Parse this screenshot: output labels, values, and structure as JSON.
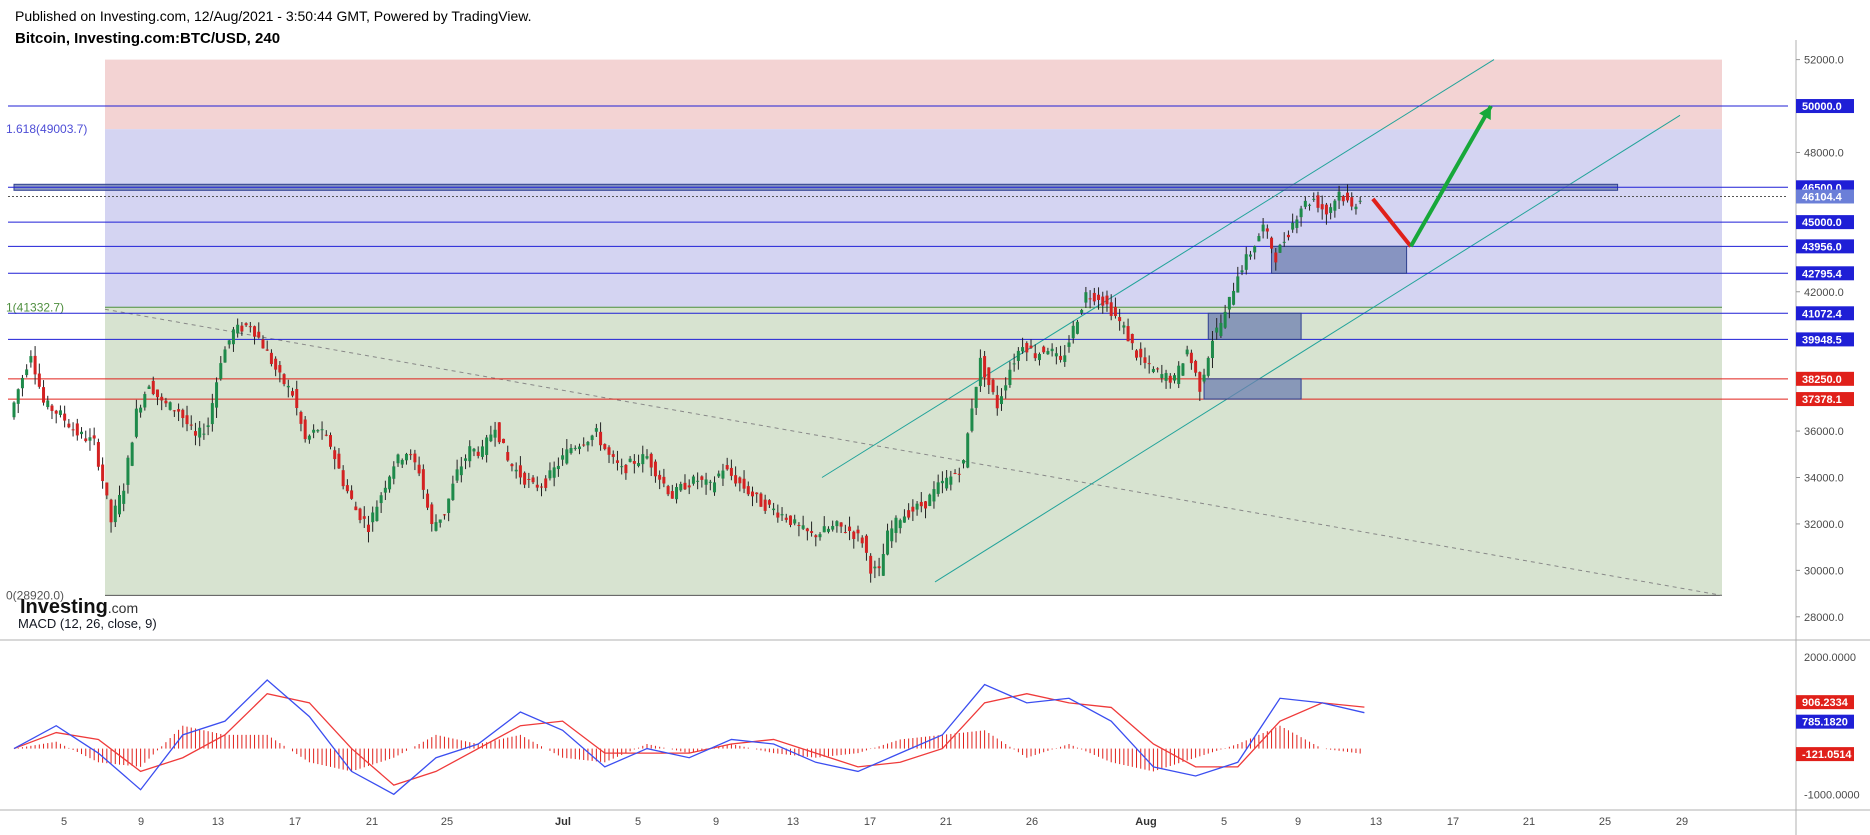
{
  "header": {
    "published": "Published on Investing.com, 12/Aug/2021 - 3:50:44 GMT, Powered by TradingView.",
    "symbol": "Bitcoin, Investing.com:BTC/USD, 240"
  },
  "brand": {
    "logo_main": "Investing",
    "logo_suffix": ".com"
  },
  "colors": {
    "fib_zone_red": "#f3d3d3",
    "fib_zone_blue": "#d4d4f2",
    "fib_zone_green": "#d7e3d0",
    "level_blue": "#1f1fd6",
    "level_red": "#e0201a",
    "channel": "#22a39a",
    "candle_up": "#1e8a4a",
    "candle_down": "#d32222",
    "macd_line": "#3b4ef0",
    "signal_line": "#ef3a3a",
    "hist": "#e0201a",
    "zone_box": "#6e7fb0",
    "arrow_green": "#17a83a",
    "arrow_red": "#e0201a"
  },
  "chart_data": [
    {
      "type": "candlestick",
      "title": "Bitcoin, Investing.com:BTC/USD, 240",
      "ylim": [
        27000,
        52500
      ],
      "y_ticks": [
        "52000.0",
        "48000.0",
        "42000.0",
        "36000.0",
        "34000.0",
        "32000.0",
        "30000.0",
        "28000.0"
      ],
      "y_tick_values": [
        52000,
        48000,
        42000,
        36000,
        34000,
        32000,
        30000,
        28000
      ],
      "x_ticks": [
        "5",
        "9",
        "13",
        "17",
        "21",
        "25",
        "Jul",
        "5",
        "9",
        "13",
        "17",
        "21",
        "26",
        "Aug",
        "5",
        "9",
        "13",
        "17",
        "21",
        "25",
        "29"
      ],
      "fibonacci": {
        "levels": [
          {
            "label": "1.618(49003.7)",
            "value": 49003.7
          },
          {
            "label": "1(41332.7)",
            "value": 41332.7
          },
          {
            "label": "0(28920.0)",
            "value": 28920.0
          }
        ],
        "top_value": 52000
      },
      "horizontal_levels": [
        {
          "label": "50000.0",
          "value": 50000.0,
          "color": "blue"
        },
        {
          "label": "46500.0",
          "value": 46500.0,
          "color": "blue"
        },
        {
          "label": "46104.4",
          "value": 46104.4,
          "color": "current"
        },
        {
          "label": "45000.0",
          "value": 45000.0,
          "color": "blue"
        },
        {
          "label": "43956.0",
          "value": 43956.0,
          "color": "blue"
        },
        {
          "label": "42795.4",
          "value": 42795.4,
          "color": "blue"
        },
        {
          "label": "41072.4",
          "value": 41072.4,
          "color": "blue"
        },
        {
          "label": "39948.5",
          "value": 39948.5,
          "color": "blue"
        },
        {
          "label": "38250.0",
          "value": 38250.0,
          "color": "red"
        },
        {
          "label": "37378.1",
          "value": 37378.1,
          "color": "red"
        }
      ],
      "price_path": [
        [
          0,
          36600
        ],
        [
          2,
          37800
        ],
        [
          5,
          39400
        ],
        [
          8,
          37200
        ],
        [
          12,
          36700
        ],
        [
          16,
          35900
        ],
        [
          20,
          35500
        ],
        [
          22,
          33900
        ],
        [
          24,
          32100
        ],
        [
          27,
          33600
        ],
        [
          30,
          36800
        ],
        [
          33,
          38100
        ],
        [
          36,
          37200
        ],
        [
          40,
          36900
        ],
        [
          44,
          35700
        ],
        [
          47,
          36300
        ],
        [
          50,
          39100
        ],
        [
          53,
          40300
        ],
        [
          57,
          40600
        ],
        [
          60,
          39700
        ],
        [
          64,
          38300
        ],
        [
          67,
          37600
        ],
        [
          70,
          35600
        ],
        [
          73,
          36100
        ],
        [
          76,
          35400
        ],
        [
          79,
          33800
        ],
        [
          82,
          32600
        ],
        [
          85,
          31900
        ],
        [
          88,
          33300
        ],
        [
          91,
          34600
        ],
        [
          94,
          35100
        ],
        [
          97,
          34300
        ],
        [
          100,
          31900
        ],
        [
          103,
          32500
        ],
        [
          106,
          34200
        ],
        [
          109,
          35200
        ],
        [
          112,
          35100
        ],
        [
          115,
          36300
        ],
        [
          118,
          34700
        ],
        [
          121,
          34100
        ],
        [
          124,
          33600
        ],
        [
          127,
          33800
        ],
        [
          130,
          34600
        ],
        [
          133,
          35300
        ],
        [
          136,
          35600
        ],
        [
          139,
          35900
        ],
        [
          142,
          34900
        ],
        [
          145,
          34300
        ],
        [
          148,
          34700
        ],
        [
          151,
          34900
        ],
        [
          154,
          34000
        ],
        [
          157,
          33200
        ],
        [
          160,
          33700
        ],
        [
          163,
          33900
        ],
        [
          166,
          33600
        ],
        [
          169,
          34400
        ],
        [
          172,
          33900
        ],
        [
          175,
          33400
        ],
        [
          178,
          32900
        ],
        [
          181,
          32600
        ],
        [
          184,
          32300
        ],
        [
          187,
          31800
        ],
        [
          190,
          31500
        ],
        [
          193,
          31700
        ],
        [
          196,
          31900
        ],
        [
          199,
          31700
        ],
        [
          202,
          31300
        ],
        [
          204,
          30100
        ],
        [
          206,
          29900
        ],
        [
          208,
          31500
        ],
        [
          211,
          32300
        ],
        [
          214,
          32600
        ],
        [
          217,
          32900
        ],
        [
          220,
          33600
        ],
        [
          223,
          34000
        ],
        [
          226,
          34600
        ],
        [
          228,
          37100
        ],
        [
          230,
          39000
        ],
        [
          232,
          38000
        ],
        [
          234,
          37100
        ],
        [
          237,
          38700
        ],
        [
          240,
          39800
        ],
        [
          243,
          39300
        ],
        [
          246,
          39600
        ],
        [
          249,
          38900
        ],
        [
          252,
          40400
        ],
        [
          255,
          41900
        ],
        [
          258,
          41800
        ],
        [
          261,
          41200
        ],
        [
          264,
          40400
        ],
        [
          267,
          39300
        ],
        [
          270,
          38700
        ],
        [
          273,
          38400
        ],
        [
          276,
          38200
        ],
        [
          279,
          39500
        ],
        [
          282,
          37900
        ],
        [
          285,
          40000
        ],
        [
          288,
          41000
        ],
        [
          291,
          42800
        ],
        [
          294,
          43700
        ],
        [
          297,
          44800
        ],
        [
          300,
          43500
        ],
        [
          303,
          44600
        ],
        [
          306,
          45700
        ],
        [
          309,
          46000
        ],
        [
          312,
          45400
        ],
        [
          315,
          46300
        ],
        [
          318,
          45600
        ],
        [
          320,
          46104
        ]
      ],
      "projection": [
        {
          "from": [
            322,
            46000
          ],
          "to": [
            331,
            43956
          ],
          "color": "red"
        },
        {
          "from": [
            331,
            43956
          ],
          "to": [
            350,
            50000
          ],
          "color": "green"
        }
      ],
      "zones": [
        {
          "x": [
            298,
            330
          ],
          "y": [
            42795.4,
            43956
          ]
        },
        {
          "x": [
            283,
            305
          ],
          "y": [
            39948.5,
            41072.4
          ]
        },
        {
          "x": [
            282,
            305
          ],
          "y": [
            37378.1,
            38250
          ]
        }
      ],
      "resistance_band": {
        "x": [
          0,
          380
        ],
        "value": 46500
      }
    },
    {
      "type": "line",
      "title": "MACD (12, 26, close, 9)",
      "ylim": [
        -1300,
        2200
      ],
      "y_ticks": [
        "2000.0000",
        "-1000.0000"
      ],
      "y_tick_values": [
        2000,
        -1000
      ],
      "last_values": {
        "signal": "906.2334",
        "macd": "785.1820",
        "histogram": "-121.0514"
      },
      "series": [
        {
          "name": "MACD",
          "color": "blue",
          "values": [
            [
              0,
              0
            ],
            [
              10,
              500
            ],
            [
              20,
              -100
            ],
            [
              30,
              -900
            ],
            [
              40,
              300
            ],
            [
              50,
              600
            ],
            [
              60,
              1500
            ],
            [
              70,
              700
            ],
            [
              80,
              -500
            ],
            [
              90,
              -1000
            ],
            [
              100,
              -200
            ],
            [
              110,
              100
            ],
            [
              120,
              800
            ],
            [
              130,
              400
            ],
            [
              140,
              -400
            ],
            [
              150,
              0
            ],
            [
              160,
              -200
            ],
            [
              170,
              200
            ],
            [
              180,
              100
            ],
            [
              190,
              -300
            ],
            [
              200,
              -500
            ],
            [
              210,
              -100
            ],
            [
              220,
              300
            ],
            [
              230,
              1400
            ],
            [
              240,
              1000
            ],
            [
              250,
              1100
            ],
            [
              260,
              600
            ],
            [
              270,
              -400
            ],
            [
              280,
              -600
            ],
            [
              290,
              -300
            ],
            [
              300,
              1100
            ],
            [
              310,
              1000
            ],
            [
              320,
              785
            ]
          ]
        },
        {
          "name": "Signal",
          "color": "red",
          "values": [
            [
              0,
              0
            ],
            [
              10,
              350
            ],
            [
              20,
              200
            ],
            [
              30,
              -500
            ],
            [
              40,
              -200
            ],
            [
              50,
              300
            ],
            [
              60,
              1200
            ],
            [
              70,
              1000
            ],
            [
              80,
              0
            ],
            [
              90,
              -800
            ],
            [
              100,
              -500
            ],
            [
              110,
              0
            ],
            [
              120,
              500
            ],
            [
              130,
              600
            ],
            [
              140,
              -100
            ],
            [
              150,
              -100
            ],
            [
              160,
              -100
            ],
            [
              170,
              100
            ],
            [
              180,
              200
            ],
            [
              190,
              -100
            ],
            [
              200,
              -400
            ],
            [
              210,
              -300
            ],
            [
              220,
              0
            ],
            [
              230,
              1000
            ],
            [
              240,
              1200
            ],
            [
              250,
              1000
            ],
            [
              260,
              900
            ],
            [
              270,
              100
            ],
            [
              280,
              -400
            ],
            [
              290,
              -400
            ],
            [
              300,
              600
            ],
            [
              310,
              1000
            ],
            [
              320,
              906
            ]
          ]
        },
        {
          "name": "Histogram",
          "color": "red",
          "values": [
            [
              0,
              0
            ],
            [
              10,
              150
            ],
            [
              20,
              -300
            ],
            [
              30,
              -400
            ],
            [
              40,
              500
            ],
            [
              50,
              300
            ],
            [
              60,
              300
            ],
            [
              70,
              -300
            ],
            [
              80,
              -500
            ],
            [
              90,
              -200
            ],
            [
              100,
              300
            ],
            [
              110,
              100
            ],
            [
              120,
              300
            ],
            [
              130,
              -200
            ],
            [
              140,
              -300
            ],
            [
              150,
              100
            ],
            [
              160,
              -100
            ],
            [
              170,
              100
            ],
            [
              180,
              -100
            ],
            [
              190,
              -200
            ],
            [
              200,
              -100
            ],
            [
              210,
              200
            ],
            [
              220,
              300
            ],
            [
              230,
              400
            ],
            [
              240,
              -200
            ],
            [
              250,
              100
            ],
            [
              260,
              -300
            ],
            [
              270,
              -500
            ],
            [
              280,
              -200
            ],
            [
              290,
              100
            ],
            [
              300,
              500
            ],
            [
              310,
              0
            ],
            [
              320,
              -121
            ]
          ]
        }
      ]
    }
  ]
}
